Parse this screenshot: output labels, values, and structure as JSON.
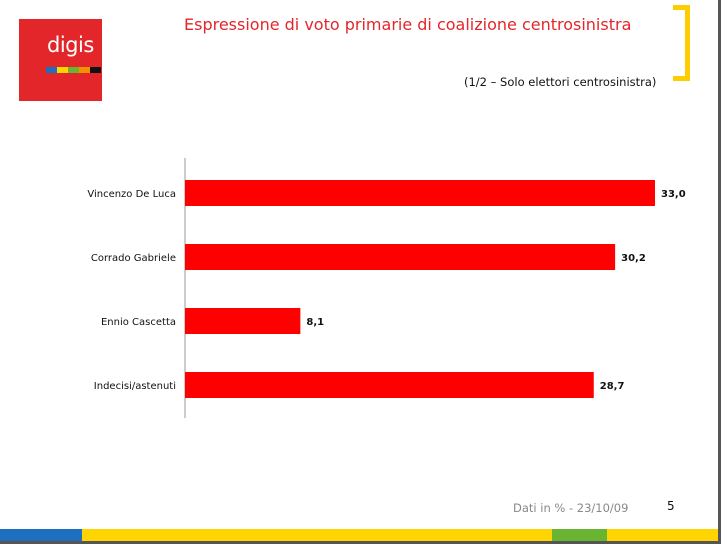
{
  "header": {
    "title": "Espressione di voto primarie di coalizione centrosinistra",
    "subtitle": "(1/2 – Solo elettori centrosinistra)"
  },
  "logo": {
    "text": "digis",
    "color": "#e3262a",
    "stripe_colors": [
      "#1e6fc0",
      "#ffd400",
      "#69b532",
      "#f39200",
      "#111111"
    ]
  },
  "chart_data": {
    "type": "bar",
    "orientation": "horizontal",
    "categories": [
      "Vincenzo De Luca",
      "Corrado Gabriele",
      "Ennio Cascetta",
      "Indecisi/astenuti"
    ],
    "values": [
      33.0,
      30.2,
      8.1,
      28.7
    ],
    "value_labels": [
      "33,0",
      "30,2",
      "8,1",
      "28,7"
    ],
    "bar_color": "#ff0000",
    "xlim": [
      0,
      33.0
    ],
    "grid": false
  },
  "footer": {
    "note": "Dati in % - 23/10/09",
    "page_number": "5",
    "band_colors": [
      "#1e6fc0",
      "#ffd400",
      "#69b532",
      "#ffd400"
    ]
  }
}
